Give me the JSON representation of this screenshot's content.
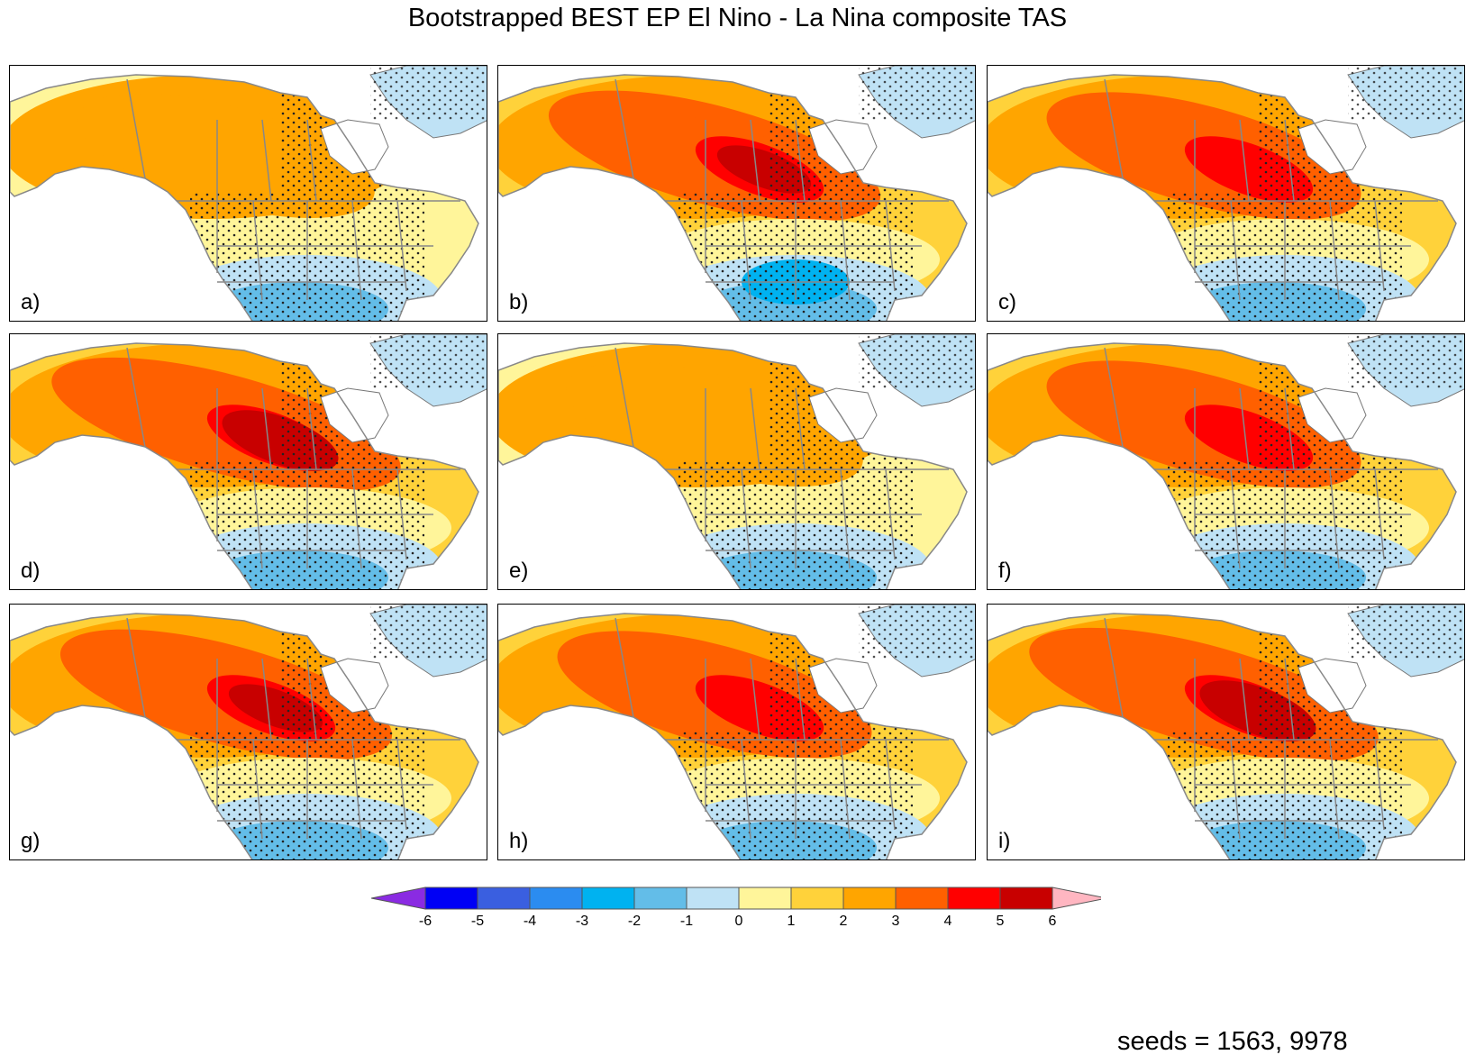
{
  "title": "Bootstrapped BEST EP El Nino - La Nina composite TAS",
  "panels": [
    {
      "label": "a)",
      "intensity": 0
    },
    {
      "label": "b)",
      "intensity": 2
    },
    {
      "label": "c)",
      "intensity": 1
    },
    {
      "label": "d)",
      "intensity": 3
    },
    {
      "label": "e)",
      "intensity": 0
    },
    {
      "label": "f)",
      "intensity": 1
    },
    {
      "label": "g)",
      "intensity": 2
    },
    {
      "label": "h)",
      "intensity": 1
    },
    {
      "label": "i)",
      "intensity": 3
    }
  ],
  "colorbar": {
    "ticks": [
      "-6",
      "-5",
      "-4",
      "-3",
      "-2",
      "-1",
      "0",
      "1",
      "2",
      "3",
      "4",
      "5",
      "6"
    ],
    "low_extend_color": "#8a2be2",
    "high_extend_color": "#ffb6c1",
    "colors": [
      "#0000f5",
      "#3a5fe0",
      "#2b8cf0",
      "#00b2f0",
      "#63bde8",
      "#bfe2f5",
      "#fff59a",
      "#ffd23a",
      "#ffa500",
      "#ff6000",
      "#ff0000",
      "#c80000"
    ]
  },
  "footer": {
    "seeds": "seeds = 1563, 9978"
  }
}
